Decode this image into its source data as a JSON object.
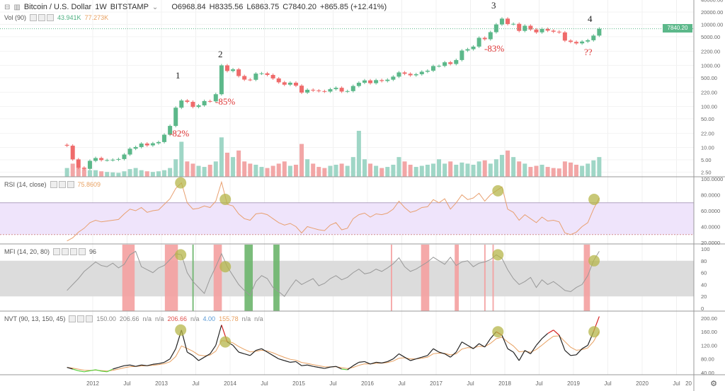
{
  "header": {
    "symbol": "Bitcoin / U.S. Dollar",
    "interval": "1W",
    "exchange": "BITSTAMP",
    "open": "O6968.84",
    "high": "H8335.56",
    "low": "L6863.75",
    "close": "C7840.20",
    "change": "+865.85 (+12.41%)",
    "last_price": "7840.20"
  },
  "volume_legend": {
    "label": "Vol (90)",
    "v1": "43.941K",
    "v2": "77.273K"
  },
  "rsi_legend": {
    "label": "RSI (14, close)",
    "value": "75.8609"
  },
  "mfi_legend": {
    "label": "MFI (14, 20, 80)",
    "value": "96"
  },
  "nvt_legend": {
    "label": "NVT (90, 13, 150, 45)",
    "values": [
      "150.00",
      "206.66",
      "n/a",
      "n/a",
      "206.66",
      "n/a",
      "4.00",
      "155.78",
      "n/a",
      "n/a"
    ]
  },
  "annotations": {
    "n1": "1",
    "n2": "2",
    "n3": "3",
    "n4": "4",
    "d1": "-82%",
    "d2": "-85%",
    "d3": "-83%",
    "q": "??"
  },
  "colors": {
    "up": "#5cb88a",
    "down": "#ef6b6b",
    "rsi": "#e8a070",
    "rsi_band": "#efe4fb",
    "mfi_band": "#dcdcdc",
    "mfi_red": "#f4a0a0",
    "mfi_green": "#6cb56c",
    "marker": "#b5b54a"
  },
  "chart_data": {
    "type": "candlestick",
    "x_ticks": [
      "2012",
      "Jul",
      "2013",
      "Jul",
      "2014",
      "Jul",
      "2015",
      "Jul",
      "2016",
      "Jul",
      "2017",
      "Jul",
      "2018",
      "Jul",
      "2019",
      "Jul",
      "2020",
      "Jul",
      "20"
    ],
    "price_axis": {
      "scale": "log",
      "ticks": [
        "40000.00",
        "20000.00",
        "10000.00",
        "5000.00",
        "2200.00",
        "1000.00",
        "500.00",
        "220.00",
        "100.00",
        "50.00",
        "22.00",
        "10.00",
        "5.00",
        "2.50"
      ]
    },
    "rsi_axis": {
      "ticks": [
        "100.0000",
        "80.0000",
        "60.0000",
        "40.0000",
        "20.0000"
      ],
      "band": [
        30,
        70
      ]
    },
    "mfi_axis": {
      "ticks": [
        "100",
        "80",
        "60",
        "40",
        "20",
        "0"
      ],
      "band": [
        20,
        80
      ]
    },
    "nvt_axis": {
      "ticks": [
        "200.00",
        "160.00",
        "120.00",
        "80.00",
        "40.00"
      ]
    },
    "start": "2011-08",
    "close": [
      11,
      5.1,
      3.2,
      3.0,
      4.7,
      5.5,
      4.9,
      4.9,
      5.0,
      5.2,
      6.7,
      9.3,
      10.2,
      12.4,
      11.2,
      12.6,
      13.5,
      20.4,
      33.4,
      93,
      139,
      129,
      97,
      106,
      135,
      133,
      198,
      1000,
      730,
      800,
      550,
      450,
      445,
      630,
      640,
      585,
      480,
      387,
      338,
      378,
      320,
      217,
      254,
      244,
      236,
      230,
      263,
      284,
      230,
      236,
      314,
      377,
      430,
      368,
      437,
      416,
      448,
      531,
      673,
      624,
      573,
      609,
      700,
      742,
      964,
      970,
      1190,
      1080,
      1350,
      2300,
      2480,
      2870,
      4700,
      4340,
      6450,
      9950,
      13800,
      10200,
      10300,
      6930,
      9240,
      7490,
      6390,
      7730,
      7030,
      6630,
      6370,
      4020,
      3740,
      3440,
      3810,
      4100,
      5320,
      7840
    ],
    "volume_k": [
      40,
      60,
      45,
      35,
      30,
      30,
      25,
      22,
      20,
      18,
      25,
      35,
      40,
      30,
      25,
      22,
      25,
      30,
      40,
      80,
      160,
      70,
      60,
      50,
      45,
      55,
      70,
      180,
      110,
      90,
      120,
      70,
      60,
      55,
      45,
      40,
      50,
      60,
      70,
      50,
      55,
      150,
      80,
      60,
      45,
      40,
      50,
      55,
      60,
      50,
      90,
      210,
      80,
      60,
      50,
      40,
      45,
      55,
      90,
      70,
      55,
      45,
      50,
      55,
      60,
      80,
      60,
      70,
      55,
      65,
      60,
      55,
      70,
      75,
      60,
      80,
      100,
      120,
      90,
      70,
      60,
      45,
      50,
      55,
      45,
      40,
      38,
      70,
      65,
      55,
      50,
      60,
      75,
      90
    ],
    "rsi": [
      22,
      26,
      33,
      38,
      45,
      48,
      46,
      47,
      48,
      49,
      56,
      62,
      60,
      64,
      58,
      60,
      61,
      68,
      75,
      88,
      95,
      70,
      62,
      63,
      66,
      64,
      72,
      96,
      68,
      66,
      56,
      50,
      48,
      56,
      57,
      55,
      50,
      45,
      42,
      44,
      40,
      32,
      40,
      38,
      36,
      35,
      42,
      45,
      36,
      38,
      50,
      55,
      57,
      52,
      56,
      55,
      57,
      62,
      72,
      64,
      58,
      60,
      64,
      65,
      74,
      70,
      75,
      62,
      70,
      80,
      74,
      76,
      82,
      72,
      80,
      85,
      90,
      62,
      58,
      48,
      55,
      50,
      45,
      52,
      47,
      48,
      46,
      32,
      30,
      33,
      40,
      45,
      62,
      76
    ],
    "mfi": [
      30,
      40,
      50,
      62,
      70,
      78,
      72,
      70,
      76,
      68,
      74,
      90,
      96,
      70,
      65,
      60,
      68,
      72,
      82,
      92,
      90,
      60,
      45,
      35,
      25,
      50,
      70,
      92,
      70,
      55,
      40,
      30,
      22,
      45,
      55,
      50,
      35,
      28,
      20,
      35,
      48,
      40,
      45,
      50,
      38,
      42,
      50,
      55,
      48,
      52,
      60,
      66,
      58,
      60,
      66,
      62,
      68,
      75,
      85,
      70,
      62,
      66,
      72,
      78,
      86,
      80,
      74,
      86,
      72,
      78,
      80,
      70,
      76,
      78,
      82,
      90,
      84,
      65,
      50,
      40,
      45,
      52,
      35,
      48,
      40,
      45,
      38,
      30,
      28,
      35,
      40,
      55,
      80,
      96
    ],
    "nvt": [
      55,
      50,
      45,
      42,
      45,
      48,
      44,
      42,
      50,
      55,
      60,
      62,
      58,
      62,
      60,
      64,
      66,
      70,
      80,
      110,
      165,
      100,
      90,
      75,
      85,
      95,
      120,
      180,
      130,
      120,
      100,
      95,
      90,
      105,
      110,
      100,
      90,
      80,
      75,
      70,
      72,
      60,
      62,
      58,
      55,
      52,
      56,
      58,
      50,
      48,
      60,
      70,
      72,
      65,
      70,
      68,
      72,
      80,
      95,
      85,
      75,
      80,
      85,
      90,
      110,
      100,
      95,
      85,
      100,
      130,
      120,
      110,
      125,
      115,
      140,
      160,
      150,
      110,
      100,
      75,
      105,
      95,
      120,
      140,
      155,
      165,
      150,
      105,
      90,
      92,
      110,
      120,
      160,
      205
    ],
    "mfi_signals": [
      {
        "type": "overbought",
        "from": 2012.43,
        "to": 2012.61
      },
      {
        "type": "overbought",
        "from": 2013.05,
        "to": 2013.24
      },
      {
        "type": "oversold",
        "from": 2013.45,
        "to": 2013.47
      },
      {
        "type": "overbought",
        "from": 2013.76,
        "to": 2013.88
      },
      {
        "type": "oversold",
        "from": 2014.21,
        "to": 2014.33
      },
      {
        "type": "oversold",
        "from": 2014.63,
        "to": 2014.72
      },
      {
        "type": "overbought",
        "from": 2016.34,
        "to": 2016.36
      },
      {
        "type": "overbought",
        "from": 2016.78,
        "to": 2016.9
      },
      {
        "type": "overbought",
        "from": 2017.27,
        "to": 2017.33
      },
      {
        "type": "overbought",
        "from": 2017.7,
        "to": 2017.72
      },
      {
        "type": "overbought",
        "from": 2017.82,
        "to": 2017.84
      },
      {
        "type": "overbought",
        "from": 2019.15,
        "to": 2019.24
      }
    ],
    "highlighted_tops": [
      2013.28,
      2013.93,
      2017.9,
      2019.3
    ]
  }
}
